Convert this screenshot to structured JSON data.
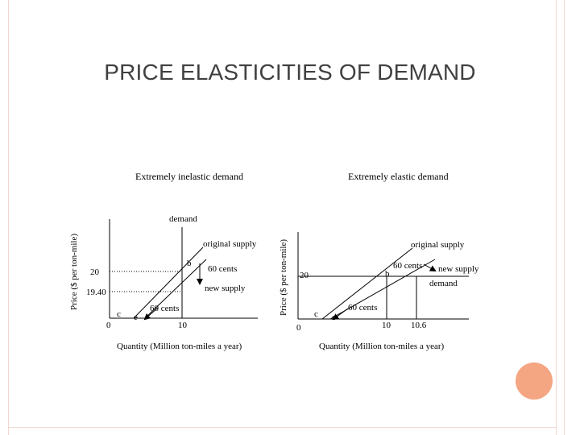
{
  "slide": {
    "title": "PRICE ELASTICITIES OF DEMAND"
  },
  "left_panel": {
    "title": "Extremely inelastic demand",
    "y_axis_label": "Price ($ per ton-mile)",
    "x_axis_label": "Quantity (Million ton-miles a year)",
    "labels": {
      "demand": "demand",
      "original_supply": "original supply",
      "new_supply": "new supply",
      "sixty_cents_top": "60 cents",
      "sixty_cents_bottom": "60 cents",
      "point_b": "b",
      "point_c": "c",
      "point_e": "e",
      "tick_20": "20",
      "tick_19_40": "19.40",
      "tick_0": "0",
      "tick_10": "10"
    }
  },
  "right_panel": {
    "title": "Extremely elastic demand",
    "y_axis_label": "Price ($ per ton-mile)",
    "x_axis_label": "Quantity (Million ton-miles a year)",
    "labels": {
      "original_supply": "original supply",
      "new_supply": "new supply",
      "demand": "demand",
      "sixty_cents_top": "60 cents",
      "sixty_cents_bottom": "60 cents",
      "point_b": "b",
      "point_c": "c",
      "point_e": "e",
      "tick_20": "20",
      "tick_0": "0",
      "tick_10": "10",
      "tick_10_6": "10.6"
    }
  },
  "colors": {
    "frame": "#f3d6d0",
    "accent_circle": "#f4a582",
    "title_text": "#404040"
  }
}
